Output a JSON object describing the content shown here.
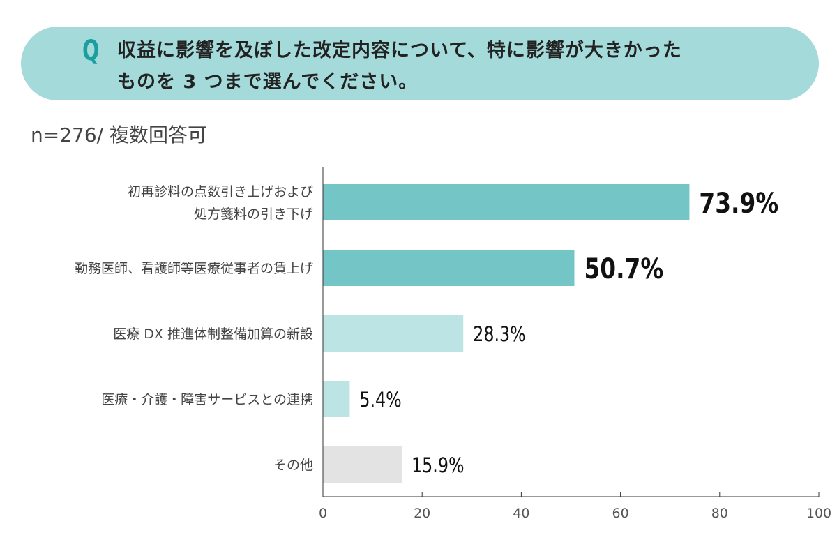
{
  "question": {
    "mark": "Q",
    "line1": "収益に影響を及ぼした改定内容について、特に影響が大きかった",
    "line2": "ものを 3 つまで選んでください。"
  },
  "sample_note": "n=276/ 複数回答可",
  "chart_data": {
    "type": "bar",
    "orientation": "horizontal",
    "categories": [
      [
        "初再診料の点数引き上げおよび",
        "処方箋料の引き下げ"
      ],
      [
        "勤務医師、看護師等医療従事者の賃上げ"
      ],
      [
        "医療 DX 推進体制整備加算の新設"
      ],
      [
        "医療・介護・障害サービスとの連携"
      ],
      [
        "その他"
      ]
    ],
    "values": [
      73.9,
      50.7,
      28.3,
      5.4,
      15.9
    ],
    "value_labels": [
      "73.9%",
      "50.7%",
      "28.3%",
      "5.4%",
      "15.9%"
    ],
    "bar_colors": [
      "#74c6c6",
      "#74c6c6",
      "#bde4e4",
      "#bde4e4",
      "#e3e3e3"
    ],
    "emphasized": [
      true,
      true,
      false,
      false,
      false
    ],
    "xlim": [
      0,
      100
    ],
    "xticks": [
      0,
      20,
      40,
      60,
      80,
      100
    ],
    "grid": false
  }
}
